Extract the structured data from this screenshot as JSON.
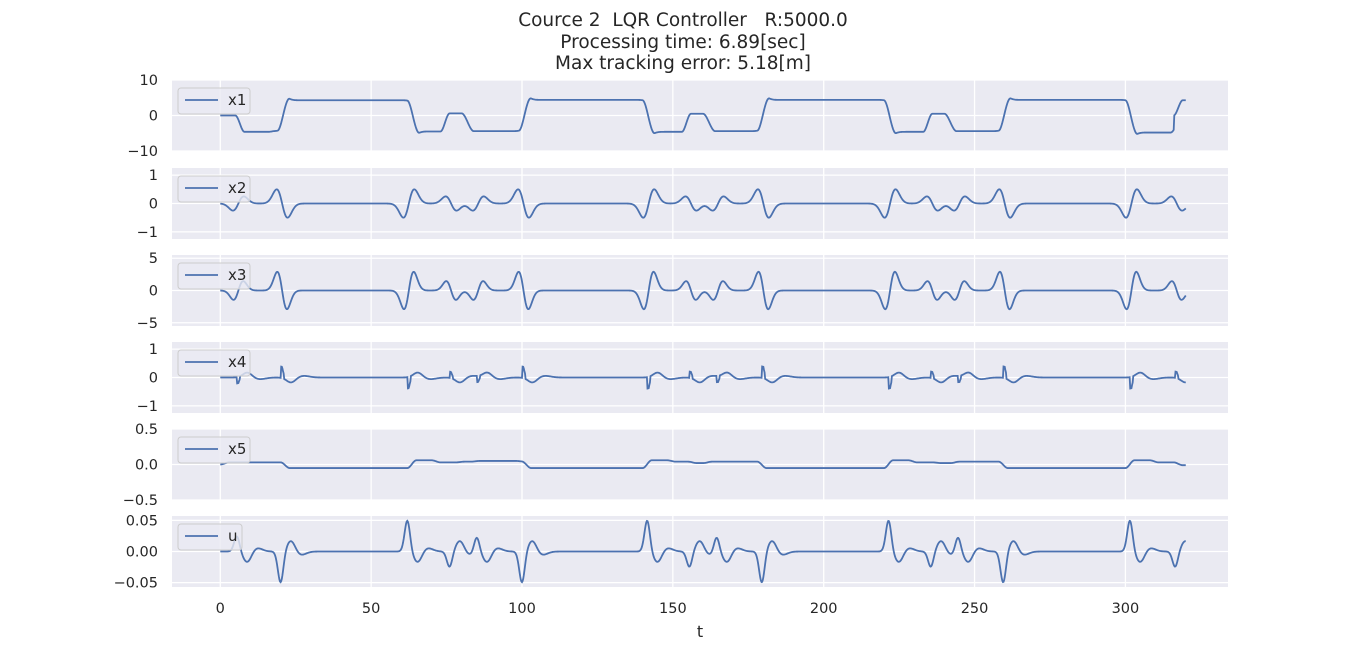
{
  "title_lines": [
    "Cource 2  LQR Controller   R:5000.0",
    "Processing time: 6.89[sec]",
    "Max tracking error: 5.18[m]"
  ],
  "colors": {
    "background": "#eaeaf2",
    "grid": "#ffffff",
    "line": "#4c72b0",
    "text": "#262626"
  },
  "chart_data": {
    "type": "line",
    "x_axis": {
      "label": "t",
      "range": [
        -16,
        334
      ],
      "ticks": [
        0,
        50,
        100,
        150,
        200,
        250,
        300
      ],
      "tick_labels": [
        "0",
        "50",
        "100",
        "150",
        "200",
        "250",
        "300"
      ]
    },
    "t_end": 320,
    "subplots": [
      {
        "series": "x1",
        "ylim": [
          -10,
          10
        ],
        "yticks": [
          -10,
          0,
          10
        ],
        "ytick_labels": [
          "−10",
          "0",
          "10"
        ],
        "legend": "upper-left",
        "approx_shape": {
          "levels": "alternates ~+4.3 (straights) and ~−4.5 (turns)",
          "peak": 5.18
        }
      },
      {
        "series": "x2",
        "ylim": [
          -1.25,
          1.25
        ],
        "yticks": [
          -1,
          0,
          1
        ],
        "ytick_labels": [
          "−1",
          "0",
          "1"
        ],
        "legend": "upper-left",
        "approx_shape": {
          "amplitude": 0.5
        }
      },
      {
        "series": "x3",
        "ylim": [
          -5.5,
          5.5
        ],
        "yticks": [
          -5,
          0,
          5
        ],
        "ytick_labels": [
          "−5",
          "0",
          "5"
        ],
        "legend": "upper-left",
        "approx_shape": {
          "amplitude": 3.0
        }
      },
      {
        "series": "x4",
        "ylim": [
          -1.25,
          1.25
        ],
        "yticks": [
          -1,
          0,
          1
        ],
        "ytick_labels": [
          "−1",
          "0",
          "1"
        ],
        "legend": "upper-left",
        "approx_shape": {
          "amplitude": 0.4
        }
      },
      {
        "series": "x5",
        "ylim": [
          -0.5,
          0.5
        ],
        "yticks": [
          -0.5,
          0.0,
          0.5
        ],
        "ytick_labels": [
          "−0.5",
          "0.0",
          "0.5"
        ],
        "legend": "upper-left",
        "approx_shape": {
          "levels": "~+0.04 to ~−0.05",
          "amplitude": 0.08
        }
      },
      {
        "series": "u",
        "ylim": [
          -0.057,
          0.057
        ],
        "yticks": [
          -0.05,
          0.0,
          0.05
        ],
        "ytick_labels": [
          "−0.05",
          "0.00",
          "0.05"
        ],
        "legend": "upper-left",
        "approx_shape": {
          "amplitude": 0.05
        }
      }
    ]
  }
}
